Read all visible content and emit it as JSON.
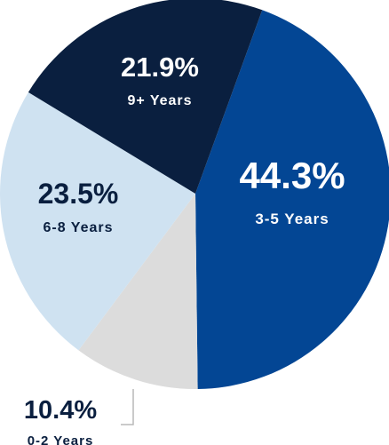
{
  "chart_data": {
    "type": "pie",
    "slices": [
      {
        "label": "3-5 Years",
        "value": 44.3,
        "display": "44.3%",
        "color": "#034694",
        "text_color": "#ffffff"
      },
      {
        "label": "0-2 Years",
        "value": 10.4,
        "display": "10.4%",
        "color": "#dcdcdc",
        "text_color": "#0a1f3f"
      },
      {
        "label": "6-8 Years",
        "value": 23.5,
        "display": "23.5%",
        "color": "#cfe2f1",
        "text_color": "#0a1f3f"
      },
      {
        "label": "9+ Years",
        "value": 21.9,
        "display": "21.9%",
        "color": "#0a1f3f",
        "text_color": "#ffffff"
      }
    ]
  }
}
